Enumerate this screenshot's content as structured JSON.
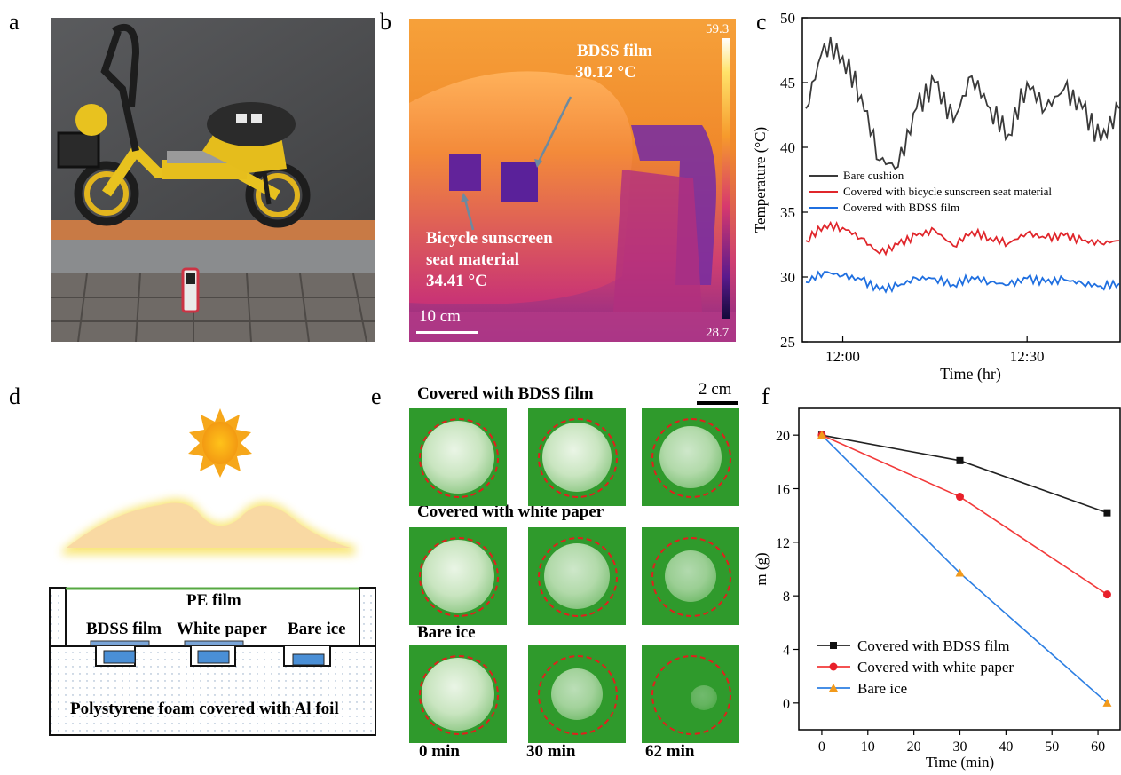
{
  "panels": {
    "a": "a",
    "b": "b",
    "c": "c",
    "d": "d",
    "e": "e",
    "f": "f"
  },
  "thermal": {
    "max": "59.3",
    "min": "28.7",
    "film_label": "BDSS film",
    "film_temp": "30.12 °C",
    "seat_label_1": "Bicycle sunscreen",
    "seat_label_2": "seat material",
    "seat_temp": "34.41 °C",
    "scale": "10 cm"
  },
  "schematic": {
    "pe_film": "PE film",
    "bdss_film": "BDSS film",
    "white_paper": "White paper",
    "bare_ice": "Bare ice",
    "foam": "Polystyrene foam covered with Al foil"
  },
  "ice_photos": {
    "scale": "2 cm",
    "rows": [
      "Covered with BDSS film",
      "Covered with white paper",
      "Bare ice"
    ],
    "times": [
      "0 min",
      "30 min",
      "62 min"
    ]
  },
  "colors": {
    "bdss": "#1f6fe0",
    "seat": "#e0262b",
    "bare": "#3a3a3a",
    "white_paper_line": "#f23a3a",
    "bare_ice_line": "#2d7fe3"
  },
  "chart_data": [
    {
      "type": "line",
      "title": "",
      "xlabel": "Time (hr)",
      "ylabel": "Temperature (°C)",
      "ylim": [
        25,
        50
      ],
      "yticks": [
        "25",
        "30",
        "35",
        "40",
        "45",
        "50"
      ],
      "xticks": [
        "12:00",
        "12:30"
      ],
      "x": [
        "11:54",
        "11:57",
        "12:00",
        "12:03",
        "12:06",
        "12:09",
        "12:12",
        "12:15",
        "12:18",
        "12:21",
        "12:24",
        "12:27",
        "12:30",
        "12:33",
        "12:36",
        "12:39",
        "12:42",
        "12:45"
      ],
      "series": [
        {
          "name": "Bare cushion",
          "values": [
            43,
            48,
            47,
            44,
            39,
            38.5,
            43,
            45,
            42,
            45.5,
            43,
            41,
            45,
            43,
            44.5,
            43,
            40.5,
            43
          ]
        },
        {
          "name": "Covered with bicycle sunscreen seat material",
          "values": [
            32.8,
            34,
            33.8,
            33,
            31.8,
            32.5,
            33.2,
            33.6,
            32.4,
            33.5,
            33,
            32.6,
            33.4,
            33,
            33.2,
            32.8,
            32.6,
            32.8
          ]
        },
        {
          "name": "Covered with BDSS film",
          "values": [
            29.6,
            30.4,
            30.1,
            29.8,
            29,
            29.3,
            29.9,
            29.9,
            29.4,
            30,
            29.6,
            29.4,
            29.9,
            29.6,
            29.8,
            29.5,
            29.3,
            29.5
          ]
        }
      ]
    },
    {
      "type": "line",
      "title": "",
      "xlabel": "Time (min)",
      "ylabel": "m (g)",
      "xlim": [
        -5,
        65
      ],
      "ylim": [
        -2,
        22
      ],
      "xticks": [
        0,
        10,
        20,
        30,
        40,
        50,
        60
      ],
      "yticks": [
        0,
        4,
        8,
        12,
        16,
        20
      ],
      "x": [
        0,
        30,
        62
      ],
      "series": [
        {
          "name": "Covered with BDSS film",
          "values": [
            20,
            18.1,
            14.2
          ],
          "marker": "square"
        },
        {
          "name": "Covered with white paper",
          "values": [
            20,
            15.4,
            8.1
          ],
          "marker": "circle"
        },
        {
          "name": "Bare ice",
          "values": [
            20,
            9.7,
            0
          ],
          "marker": "triangle"
        }
      ]
    }
  ]
}
